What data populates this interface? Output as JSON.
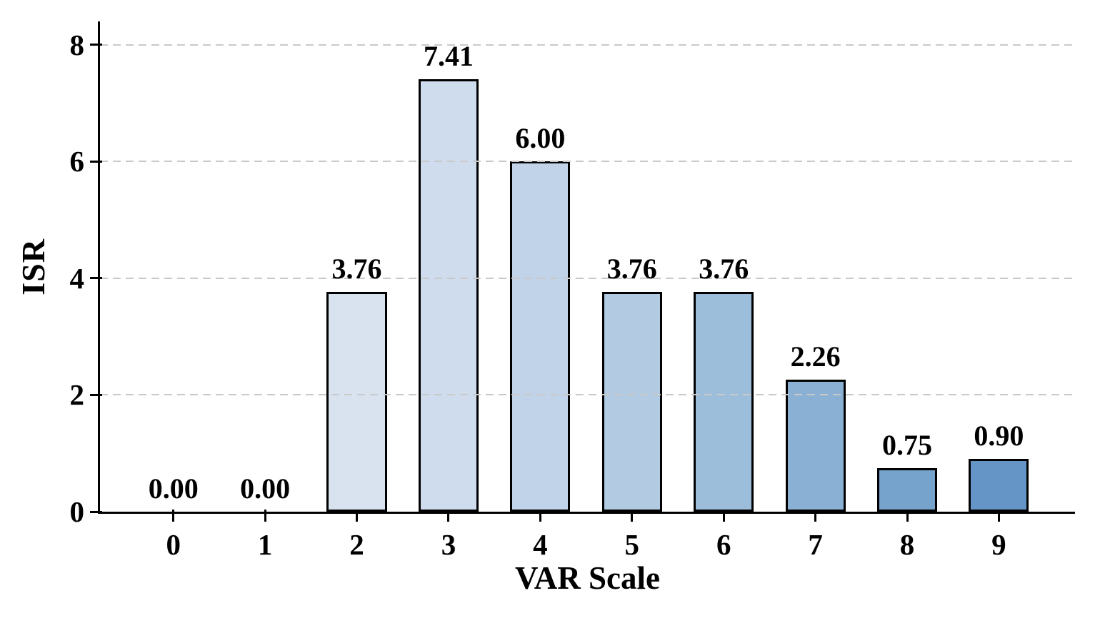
{
  "figure": {
    "background": "#ffffff"
  },
  "chart_data": {
    "type": "bar",
    "title": "",
    "xlabel": "VAR Scale",
    "ylabel": "ISR",
    "categories": [
      "0",
      "1",
      "2",
      "3",
      "4",
      "5",
      "6",
      "7",
      "8",
      "9"
    ],
    "values": [
      0.0,
      0.0,
      3.76,
      7.41,
      6.0,
      3.76,
      3.76,
      2.26,
      0.75,
      0.9
    ],
    "value_labels": [
      "0.00",
      "0.00",
      "3.76",
      "7.41",
      "6.00",
      "3.76",
      "3.76",
      "2.26",
      "0.75",
      "0.90"
    ],
    "bar_colors": [
      "#f3f7fb",
      "#e6edf6",
      "#d9e3f0",
      "#cedcee",
      "#c0d3e8",
      "#b2cbe2",
      "#9cbeda",
      "#8ab0d4",
      "#75a3cc",
      "#6495c6"
    ],
    "bar_edge_color": "#000000",
    "bar_width_units": 0.655,
    "xlim": [
      -0.8,
      9.83
    ],
    "ylim": [
      0,
      8.4
    ],
    "yticks": [
      0,
      2,
      4,
      6,
      8
    ],
    "gridline_values": [
      2,
      4,
      6,
      8
    ],
    "gridline_style": "dashed",
    "gridline_color": "#c9c9c9",
    "grid": "horizontal, drawn over bars",
    "legend": "none",
    "spines": [
      "left",
      "bottom"
    ]
  }
}
